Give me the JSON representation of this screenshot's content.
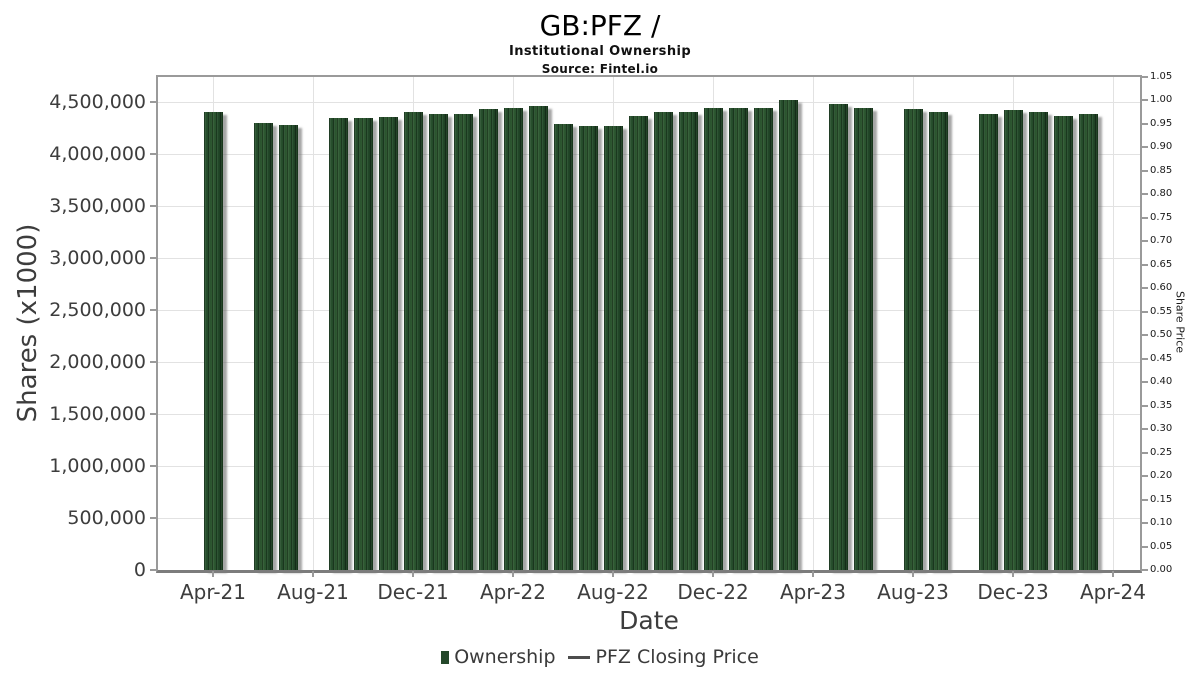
{
  "header": {
    "title": "GB:PFZ /",
    "subtitle": "Institutional Ownership",
    "source": "Source: Fintel.io"
  },
  "chart_data": {
    "type": "bar",
    "title": "GB:PFZ /",
    "subtitle": "Institutional Ownership",
    "source": "Source: Fintel.io",
    "xlabel": "Date",
    "ylabel_left": "Shares (x1000)",
    "ylabel_right": "Share Price",
    "grid": true,
    "legend_position": "bottom",
    "legend": [
      {
        "label": "Ownership",
        "marker": "square",
        "color": "#24482a"
      },
      {
        "label": "PFZ Closing Price",
        "marker": "line",
        "color": "#4d4d4d"
      }
    ],
    "bar_color": "#2a5130",
    "x_ticks": [
      "Apr-21",
      "Aug-21",
      "Dec-21",
      "Apr-22",
      "Aug-22",
      "Dec-22",
      "Apr-23",
      "Aug-23",
      "Dec-23",
      "Apr-24"
    ],
    "y_left_ticks": [
      "4,500,000",
      "4,000,000",
      "3,500,000",
      "3,000,000",
      "2,500,000",
      "2,000,000",
      "1,500,000",
      "1,000,000",
      "500,000",
      "0"
    ],
    "y_left_range": [
      0,
      4740000
    ],
    "y_right_ticks": [
      "1.05",
      "1.00",
      "0.95",
      "0.90",
      "0.85",
      "0.80",
      "0.75",
      "0.70",
      "0.65",
      "0.60",
      "0.55",
      "0.50",
      "0.45",
      "0.40",
      "0.35",
      "0.30",
      "0.25",
      "0.20",
      "0.15",
      "0.10",
      "0.05",
      "0.00"
    ],
    "y_right_range": [
      0,
      1.05
    ],
    "bars": [
      {
        "date": "Apr-21",
        "offset": 0,
        "shares": 4400000
      },
      {
        "date": "Jun-21",
        "offset": 2,
        "shares": 4300000
      },
      {
        "date": "Jul-21",
        "offset": 3,
        "shares": 4280000
      },
      {
        "date": "Sep-21",
        "offset": 5,
        "shares": 4350000
      },
      {
        "date": "Oct-21",
        "offset": 6,
        "shares": 4350000
      },
      {
        "date": "Nov-21",
        "offset": 7,
        "shares": 4360000
      },
      {
        "date": "Dec-21",
        "offset": 8,
        "shares": 4400000
      },
      {
        "date": "Jan-22",
        "offset": 9,
        "shares": 4380000
      },
      {
        "date": "Feb-22",
        "offset": 10,
        "shares": 4380000
      },
      {
        "date": "Mar-22",
        "offset": 11,
        "shares": 4430000
      },
      {
        "date": "Apr-22",
        "offset": 12,
        "shares": 4440000
      },
      {
        "date": "May-22",
        "offset": 13,
        "shares": 4460000
      },
      {
        "date": "Jun-22",
        "offset": 14,
        "shares": 4290000
      },
      {
        "date": "Jul-22",
        "offset": 15,
        "shares": 4270000
      },
      {
        "date": "Aug-22",
        "offset": 16,
        "shares": 4270000
      },
      {
        "date": "Sep-22",
        "offset": 17,
        "shares": 4370000
      },
      {
        "date": "Oct-22",
        "offset": 18,
        "shares": 4400000
      },
      {
        "date": "Nov-22",
        "offset": 19,
        "shares": 4400000
      },
      {
        "date": "Dec-22",
        "offset": 20,
        "shares": 4440000
      },
      {
        "date": "Jan-23",
        "offset": 21,
        "shares": 4440000
      },
      {
        "date": "Feb-23",
        "offset": 22,
        "shares": 4440000
      },
      {
        "date": "Mar-23",
        "offset": 23,
        "shares": 4520000
      },
      {
        "date": "May-23",
        "offset": 25,
        "shares": 4480000
      },
      {
        "date": "Jun-23",
        "offset": 26,
        "shares": 4440000
      },
      {
        "date": "Aug-23",
        "offset": 28,
        "shares": 4430000
      },
      {
        "date": "Sep-23",
        "offset": 29,
        "shares": 4400000
      },
      {
        "date": "Nov-23",
        "offset": 31,
        "shares": 4380000
      },
      {
        "date": "Dec-23",
        "offset": 32,
        "shares": 4420000
      },
      {
        "date": "Jan-24",
        "offset": 33,
        "shares": 4400000
      },
      {
        "date": "Feb-24",
        "offset": 34,
        "shares": 4370000
      },
      {
        "date": "Mar-24",
        "offset": 35,
        "shares": 4380000
      }
    ],
    "price_series": []
  }
}
